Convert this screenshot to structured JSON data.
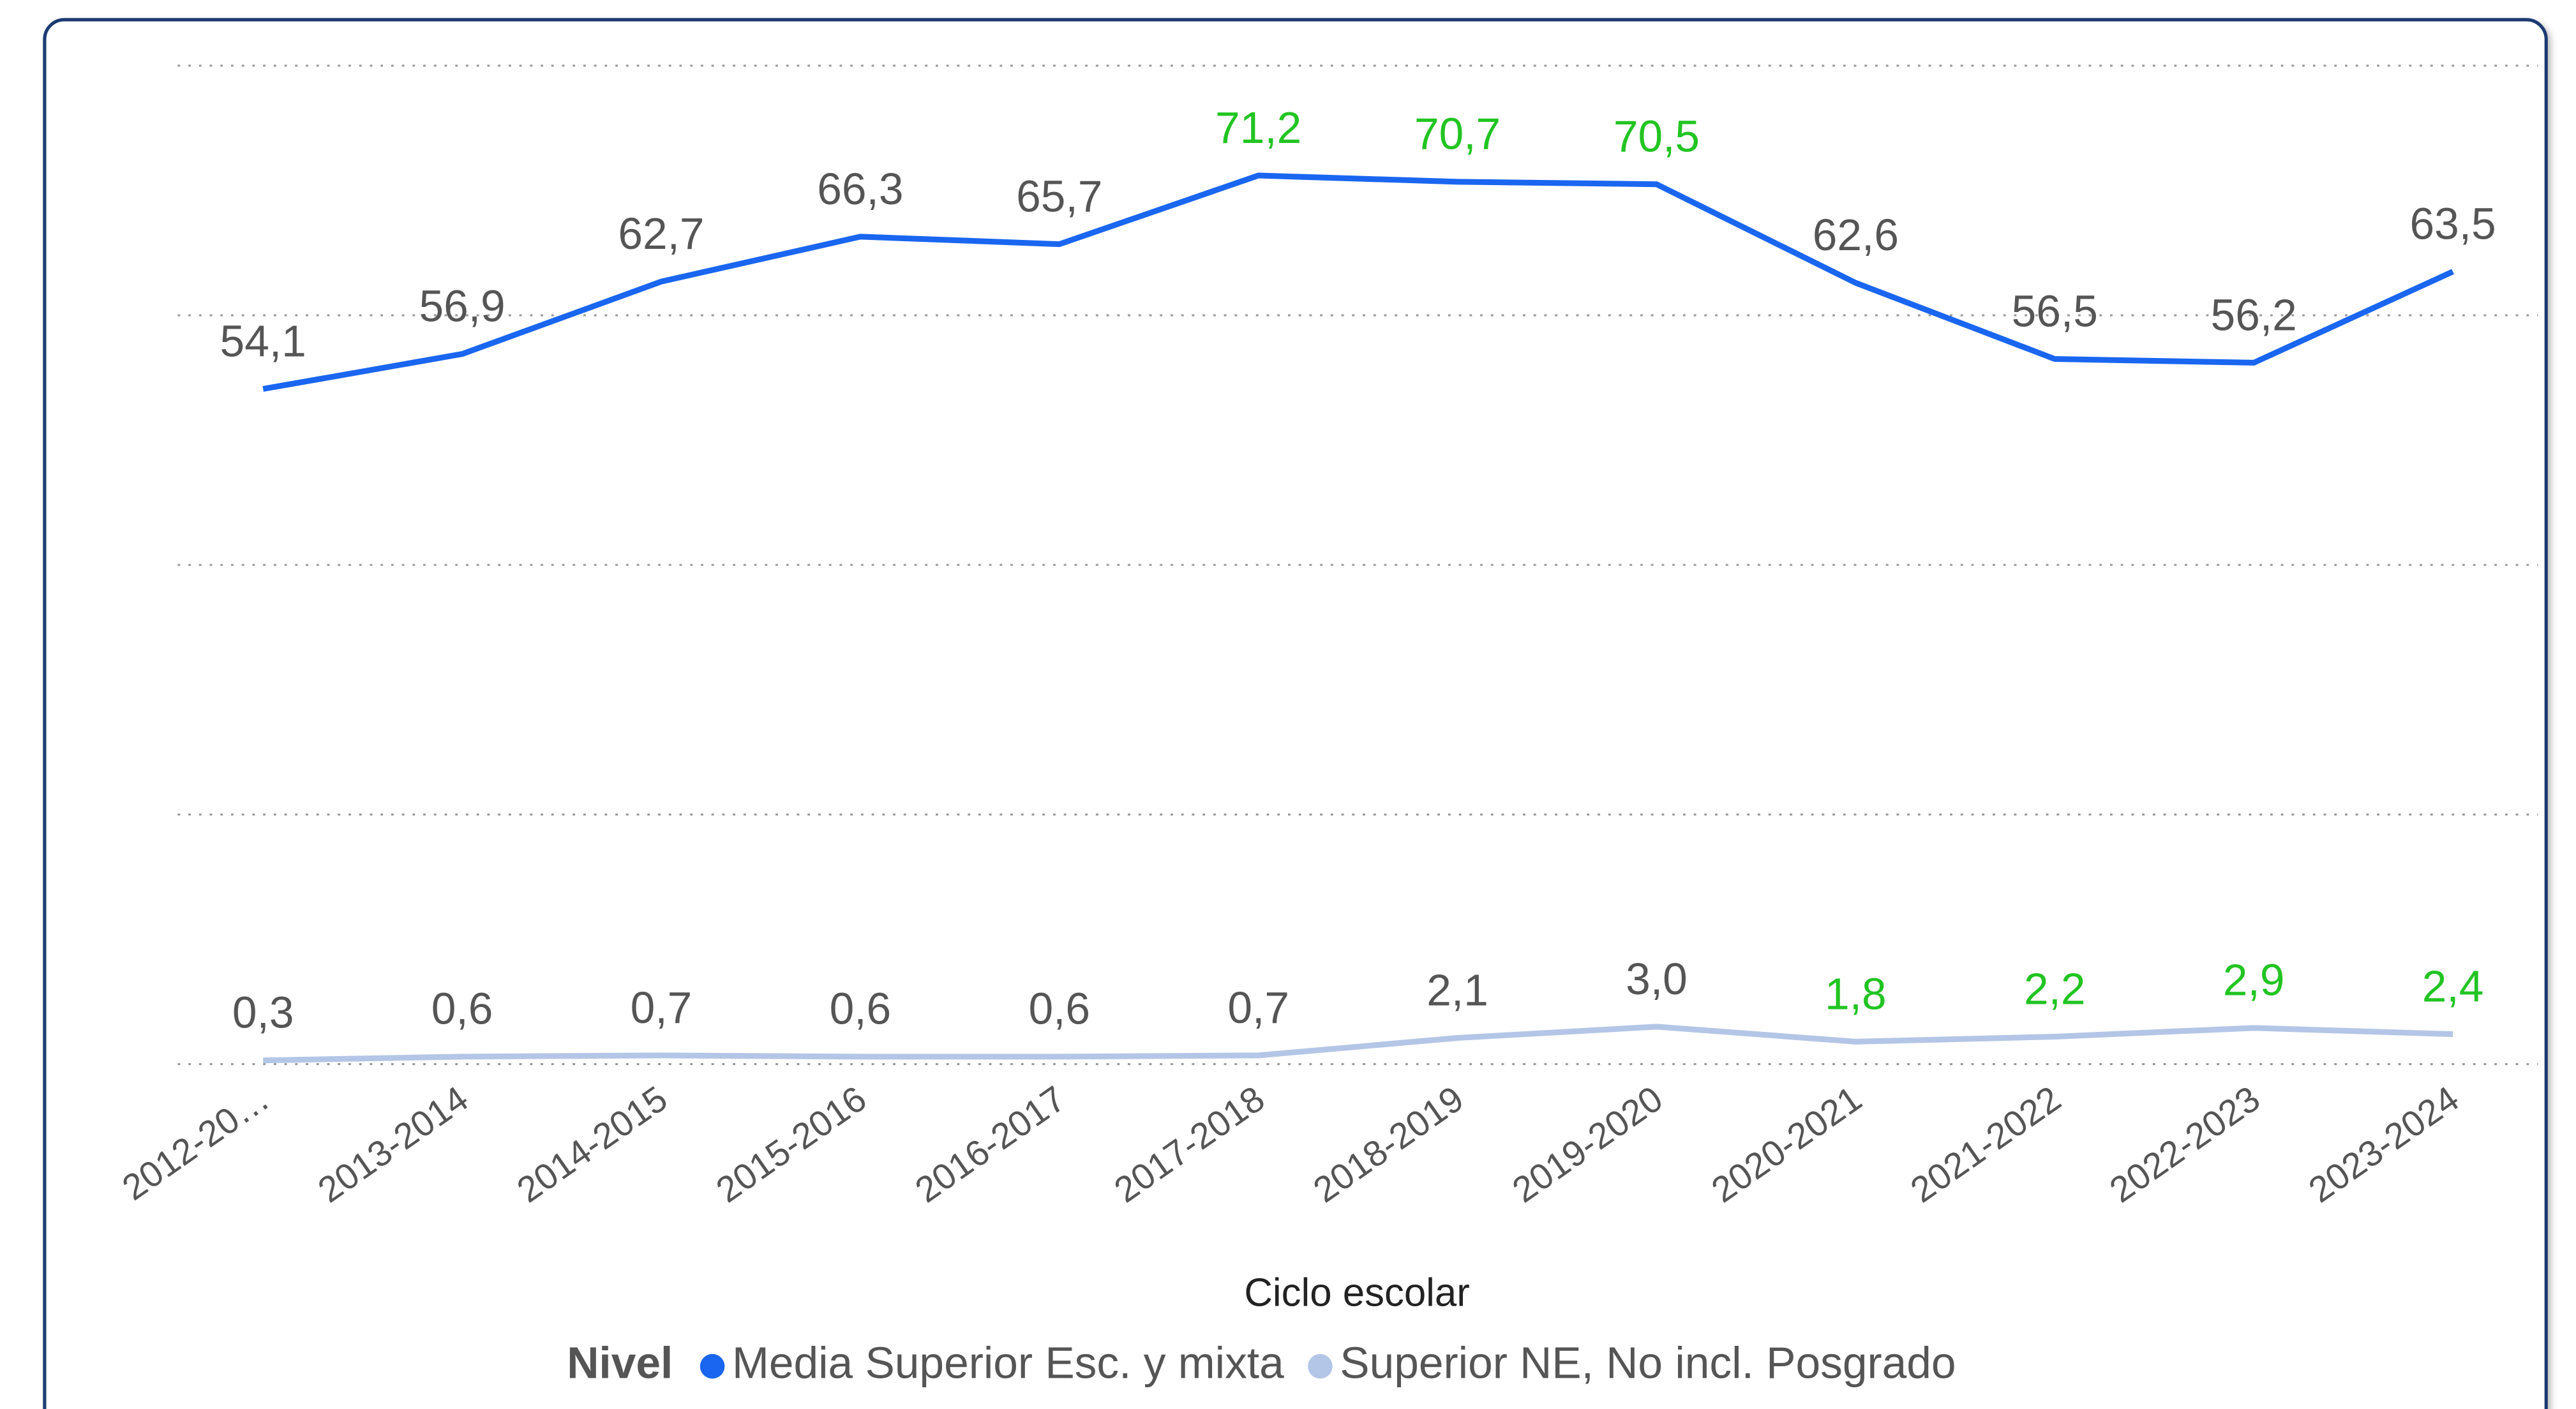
{
  "chart_data": {
    "type": "line",
    "x_label": "Ciclo escolar",
    "legend_title": "Nivel",
    "categories": [
      "2012-20…",
      "2013-2014",
      "2014-2015",
      "2015-2016",
      "2016-2017",
      "2017-2018",
      "2018-2019",
      "2019-2020",
      "2020-2021",
      "2021-2022",
      "2022-2023",
      "2023-2024"
    ],
    "series": [
      {
        "name": "Media Superior Esc. y mixta",
        "color": "#1a66f0",
        "values": [
          54.1,
          56.9,
          62.7,
          66.3,
          65.7,
          71.2,
          70.7,
          70.5,
          62.6,
          56.5,
          56.2,
          63.5
        ],
        "value_labels": [
          "54,1",
          "56,9",
          "62,7",
          "66,3",
          "65,7",
          "71,2",
          "70,7",
          "70,5",
          "62,6",
          "56,5",
          "56,2",
          "63,5"
        ],
        "label_colors": [
          "#555555",
          "#555555",
          "#555555",
          "#555555",
          "#555555",
          "#22c422",
          "#22c422",
          "#22c422",
          "#555555",
          "#555555",
          "#555555",
          "#555555"
        ]
      },
      {
        "name": "Superior NE, No incl. Posgrado",
        "color": "#b4c6e7",
        "values": [
          0.3,
          0.6,
          0.7,
          0.6,
          0.6,
          0.7,
          2.1,
          3.0,
          1.8,
          2.2,
          2.9,
          2.4
        ],
        "value_labels": [
          "0,3",
          "0,6",
          "0,7",
          "0,6",
          "0,6",
          "0,7",
          "2,1",
          "3,0",
          "1,8",
          "2,2",
          "2,9",
          "2,4"
        ],
        "label_colors": [
          "#555555",
          "#555555",
          "#555555",
          "#555555",
          "#555555",
          "#555555",
          "#555555",
          "#555555",
          "#22c422",
          "#22c422",
          "#22c422",
          "#22c422"
        ]
      }
    ],
    "ylim": [
      0,
      80
    ],
    "yticks": [
      0,
      20,
      40,
      60,
      80
    ],
    "grid": true,
    "legend": "bottom"
  }
}
